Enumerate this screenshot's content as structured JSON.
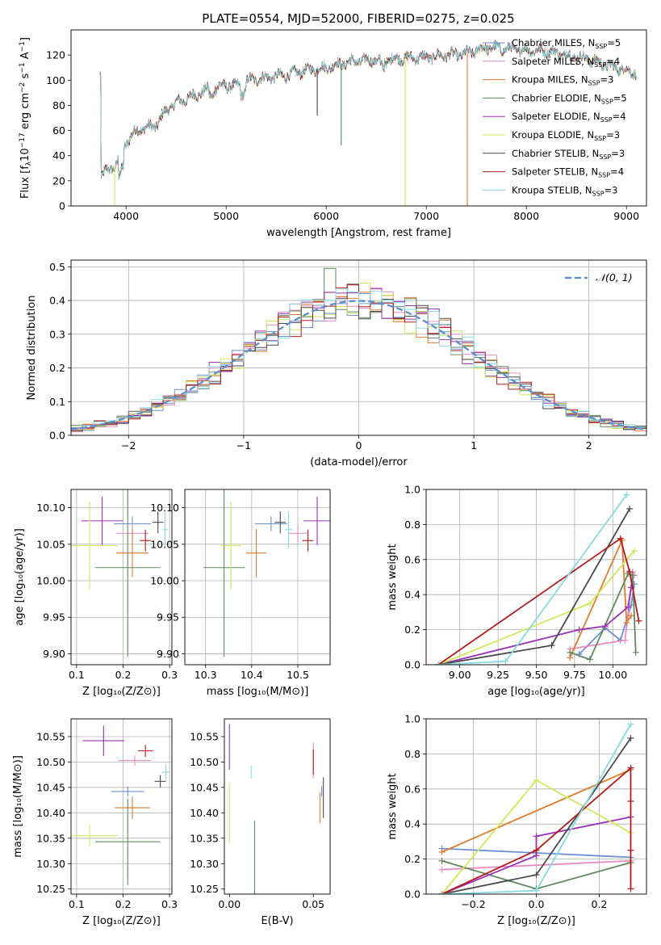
{
  "figure_title": "PLATE=0554, MJD=52000, FIBERID=0275, z=0.025",
  "colors": {
    "chabrier_miles": "#6b8fd9",
    "salpeter_miles": "#e88cc0",
    "kroupa_miles": "#e07a28",
    "chabrier_elodie": "#5e8a62",
    "salpeter_elodie": "#9b30b8",
    "kroupa_elodie": "#d2e85a",
    "chabrier_stelib": "#4a4a4a",
    "salpeter_stelib": "#b31c1c",
    "kroupa_stelib": "#86dbe0",
    "normal_curve": "#5b8fd0"
  },
  "chart_data": [
    {
      "id": "spectrum",
      "type": "line",
      "title": "PLATE=0554, MJD=52000, FIBERID=0275, z=0.025",
      "xlabel": "wavelength [Angstrom, rest frame]",
      "ylabel_parts": [
        "Flux [f",
        "λ",
        "10",
        "−17",
        " erg cm",
        "−2",
        " s",
        "−1",
        " A",
        "−1",
        "]"
      ],
      "xlim": [
        3450,
        9200
      ],
      "ylim": [
        0,
        140
      ],
      "xticks": [
        4000,
        5000,
        6000,
        7000,
        8000,
        9000
      ],
      "yticks": [
        0,
        20,
        40,
        60,
        80,
        100,
        120
      ],
      "legend_position": "upper-right",
      "series_names": [
        {
          "key": "chabrier_miles",
          "label": "Chabrier MILES, N",
          "sub": "SSP",
          "tail": "=5"
        },
        {
          "key": "salpeter_miles",
          "label": "Salpeter MILES, N",
          "sub": "SSP",
          "tail": "=4"
        },
        {
          "key": "kroupa_miles",
          "label": "Kroupa MILES, N",
          "sub": "SSP",
          "tail": "=3"
        },
        {
          "key": "chabrier_elodie",
          "label": "Chabrier ELODIE, N",
          "sub": "SSP",
          "tail": "=5"
        },
        {
          "key": "salpeter_elodie",
          "label": "Salpeter ELODIE, N",
          "sub": "SSP",
          "tail": "=4"
        },
        {
          "key": "kroupa_elodie",
          "label": "Kroupa ELODIE, N",
          "sub": "SSP",
          "tail": "=3"
        },
        {
          "key": "chabrier_stelib",
          "label": "Chabrier STELIB, N",
          "sub": "SSP",
          "tail": "=3"
        },
        {
          "key": "salpeter_stelib",
          "label": "Salpeter STELIB, N",
          "sub": "SSP",
          "tail": "=4"
        },
        {
          "key": "kroupa_stelib",
          "label": "Kroupa STELIB, N",
          "sub": "SSP",
          "tail": "=3"
        }
      ],
      "continuum": {
        "x": [
          3750,
          3800,
          3900,
          4000,
          4100,
          4200,
          4300,
          4400,
          4500,
          4600,
          4800,
          5000,
          5100,
          5200,
          5400,
          5600,
          5800,
          6000,
          6200,
          6400,
          6600,
          6800,
          7000,
          7200,
          7400,
          7600,
          7800,
          8000,
          8200,
          8400,
          8600,
          8800,
          9000,
          9100
        ],
        "y": [
          22,
          28,
          32,
          50,
          60,
          62,
          64,
          76,
          82,
          85,
          92,
          96,
          95,
          100,
          102,
          104,
          108,
          110,
          114,
          116,
          116,
          118,
          118,
          120,
          121,
          126,
          125,
          124,
          123,
          120,
          117,
          112,
          108,
          106
        ]
      },
      "dips": [
        {
          "series": "chabrier_elodie",
          "x": 6150,
          "y_min": 48
        },
        {
          "series": "kroupa_elodie",
          "x": 3885,
          "y_min": 0
        },
        {
          "series": "kroupa_elodie",
          "x": 6790,
          "y_min": 0
        },
        {
          "series": "kroupa_miles",
          "x": 7410,
          "y_min": 0
        },
        {
          "series": "chabrier_stelib",
          "x": 5910,
          "y_min": 72
        }
      ]
    },
    {
      "id": "residuals",
      "type": "step",
      "xlabel": "(data-model)/error",
      "ylabel": "Normed distribution",
      "xlim": [
        -2.5,
        2.5
      ],
      "ylim": [
        0,
        0.52
      ],
      "xticks": [
        -2,
        -1,
        0,
        1,
        2
      ],
      "yticks": [
        0.0,
        0.1,
        0.2,
        0.3,
        0.4,
        0.5
      ],
      "grid": true,
      "legend_position": "upper-right",
      "reference_curve": {
        "name": "𝒩(0, 1)",
        "mean": 0,
        "sigma": 1
      },
      "bin_width": 0.1,
      "histogram_series": [
        "chabrier_miles",
        "salpeter_miles",
        "kroupa_miles",
        "chabrier_elodie",
        "salpeter_elodie",
        "kroupa_elodie",
        "chabrier_stelib",
        "salpeter_stelib",
        "kroupa_stelib"
      ]
    },
    {
      "id": "age_vs_z",
      "type": "errorbar",
      "xlabel": "Z [log₁₀(Z/Z⊙)]",
      "ylabel": "age  [log₁₀(age/yr)]",
      "xlim": [
        0.088,
        0.305
      ],
      "ylim": [
        9.885,
        10.125
      ],
      "xticks": [
        0.1,
        0.2,
        0.3
      ],
      "yticks": [
        9.9,
        9.95,
        10.0,
        10.05,
        10.1
      ],
      "grid": true,
      "points": [
        {
          "series": "chabrier_miles",
          "x": 0.22,
          "xerr": 0.04,
          "y": 10.078,
          "yerr": 0.01
        },
        {
          "series": "salpeter_miles",
          "x": 0.22,
          "xerr": 0.035,
          "y": 10.065,
          "yerr": 0.012
        },
        {
          "series": "kroupa_miles",
          "x": 0.22,
          "xerr": 0.035,
          "y": 10.038,
          "yerr": 0.033
        },
        {
          "series": "chabrier_elodie",
          "x": 0.21,
          "xerr": 0.07,
          "y": 10.018,
          "yerr": 0.122
        },
        {
          "series": "salpeter_elodie",
          "x": 0.155,
          "xerr": 0.045,
          "y": 10.082,
          "yerr": 0.033
        },
        {
          "series": "kroupa_elodie",
          "x": 0.128,
          "xerr": 0.06,
          "y": 10.048,
          "yerr": 0.06
        },
        {
          "series": "chabrier_stelib",
          "x": 0.275,
          "xerr": 0.012,
          "y": 10.08,
          "yerr": 0.015
        },
        {
          "series": "salpeter_stelib",
          "x": 0.248,
          "xerr": 0.012,
          "y": 10.055,
          "yerr": 0.015
        },
        {
          "series": "kroupa_stelib",
          "x": 0.29,
          "xerr": 0.006,
          "y": 10.07,
          "yerr": 0.025
        }
      ]
    },
    {
      "id": "age_vs_mass",
      "type": "errorbar",
      "xlabel": "mass [log₁₀(M/M⊙)]",
      "ylabel": "",
      "xlim": [
        10.255,
        10.57
      ],
      "ylim": [
        9.885,
        10.125
      ],
      "xticks": [
        10.3,
        10.4,
        10.5
      ],
      "yticks": [
        9.9,
        9.95,
        10.0,
        10.05,
        10.1
      ],
      "grid": true,
      "points": [
        {
          "series": "chabrier_miles",
          "x": 10.442,
          "xerr": 0.035,
          "y": 10.078,
          "yerr": 0.01
        },
        {
          "series": "salpeter_miles",
          "x": 10.5,
          "xerr": 0.02,
          "y": 10.065,
          "yerr": 0.012
        },
        {
          "series": "kroupa_miles",
          "x": 10.41,
          "xerr": 0.022,
          "y": 10.038,
          "yerr": 0.033
        },
        {
          "series": "chabrier_elodie",
          "x": 10.34,
          "xerr": 0.045,
          "y": 10.018,
          "yerr": 0.122
        },
        {
          "series": "salpeter_elodie",
          "x": 10.542,
          "xerr": 0.03,
          "y": 10.082,
          "yerr": 0.033
        },
        {
          "series": "kroupa_elodie",
          "x": 10.355,
          "xerr": 0.022,
          "y": 10.048,
          "yerr": 0.06
        },
        {
          "series": "chabrier_stelib",
          "x": 10.462,
          "xerr": 0.012,
          "y": 10.08,
          "yerr": 0.015
        },
        {
          "series": "salpeter_stelib",
          "x": 10.522,
          "xerr": 0.012,
          "y": 10.055,
          "yerr": 0.015
        },
        {
          "series": "kroupa_stelib",
          "x": 10.48,
          "xerr": 0.008,
          "y": 10.07,
          "yerr": 0.025
        }
      ]
    },
    {
      "id": "weight_vs_age",
      "type": "line",
      "xlabel": "age  [log₁₀(age/yr)]",
      "ylabel": "mass weight",
      "xlim": [
        8.78,
        10.22
      ],
      "ylim": [
        0,
        1.0
      ],
      "xticks": [
        9.0,
        9.25,
        9.5,
        9.75,
        10.0
      ],
      "yticks": [
        0.0,
        0.2,
        0.4,
        0.6,
        0.8,
        1.0
      ],
      "grid": true,
      "series": [
        {
          "name": "chabrier_miles",
          "x": [
            9.78,
            9.95,
            10.05,
            10.12,
            10.14
          ],
          "y": [
            0.06,
            0.21,
            0.14,
            0.34,
            0.46
          ]
        },
        {
          "name": "salpeter_miles",
          "x": [
            9.72,
            10.08,
            10.13,
            10.14
          ],
          "y": [
            0.09,
            0.14,
            0.53,
            0.51
          ]
        },
        {
          "name": "kroupa_miles",
          "x": [
            9.72,
            10.06,
            10.09,
            10.12
          ],
          "y": [
            0.04,
            0.71,
            0.24,
            0.28
          ]
        },
        {
          "name": "chabrier_elodie",
          "x": [
            9.72,
            9.85,
            10.1,
            10.13,
            10.15
          ],
          "y": [
            0.07,
            0.03,
            0.52,
            0.51,
            0.07
          ]
        },
        {
          "name": "salpeter_elodie",
          "x": [
            8.86,
            9.78,
            9.95,
            10.1,
            10.12
          ],
          "y": [
            0.0,
            0.2,
            0.22,
            0.33,
            0.44
          ]
        },
        {
          "name": "kroupa_elodie",
          "x": [
            8.86,
            9.85,
            10.14
          ],
          "y": [
            0.0,
            0.35,
            0.65
          ]
        },
        {
          "name": "chabrier_stelib",
          "x": [
            8.86,
            9.6,
            10.11
          ],
          "y": [
            0.0,
            0.11,
            0.89
          ]
        },
        {
          "name": "salpeter_stelib",
          "x": [
            8.86,
            10.05,
            10.11,
            10.17
          ],
          "y": [
            0.0,
            0.72,
            0.53,
            0.25
          ]
        },
        {
          "name": "kroupa_stelib",
          "x": [
            8.86,
            9.3,
            10.09
          ],
          "y": [
            0.0,
            0.02,
            0.97
          ]
        }
      ]
    },
    {
      "id": "mass_vs_z",
      "type": "errorbar",
      "xlabel": "Z [log₁₀(Z/Z⊙)]",
      "ylabel": "mass [log₁₀(M/M⊙)]",
      "xlim": [
        0.088,
        0.305
      ],
      "ylim": [
        10.24,
        10.585
      ],
      "xticks": [
        0.1,
        0.2,
        0.3
      ],
      "yticks": [
        10.25,
        10.3,
        10.35,
        10.4,
        10.45,
        10.5,
        10.55
      ],
      "grid": true,
      "points": [
        {
          "series": "chabrier_miles",
          "x": 0.21,
          "xerr": 0.035,
          "y": 10.442,
          "yerr": 0.01
        },
        {
          "series": "salpeter_miles",
          "x": 0.225,
          "xerr": 0.035,
          "y": 10.503,
          "yerr": 0.01
        },
        {
          "series": "kroupa_miles",
          "x": 0.22,
          "xerr": 0.038,
          "y": 10.41,
          "yerr": 0.022
        },
        {
          "series": "chabrier_elodie",
          "x": 0.21,
          "xerr": 0.07,
          "y": 10.343,
          "yerr": 0.085
        },
        {
          "series": "salpeter_elodie",
          "x": 0.158,
          "xerr": 0.045,
          "y": 10.542,
          "yerr": 0.03
        },
        {
          "series": "kroupa_elodie",
          "x": 0.128,
          "xerr": 0.06,
          "y": 10.355,
          "yerr": 0.022
        },
        {
          "series": "chabrier_stelib",
          "x": 0.28,
          "xerr": 0.012,
          "y": 10.462,
          "yerr": 0.012
        },
        {
          "series": "salpeter_stelib",
          "x": 0.248,
          "xerr": 0.016,
          "y": 10.522,
          "yerr": 0.012
        },
        {
          "series": "kroupa_stelib",
          "x": 0.292,
          "xerr": 0.008,
          "y": 10.48,
          "yerr": 0.015
        }
      ]
    },
    {
      "id": "mass_vs_ebv",
      "type": "errorbar",
      "xlabel": "E(B-V)",
      "ylabel": "",
      "xlim": [
        -0.003,
        0.06
      ],
      "ylim": [
        10.24,
        10.585
      ],
      "xticks": [
        0.0,
        0.05
      ],
      "yticks": [
        10.25,
        10.3,
        10.35,
        10.4,
        10.45,
        10.5,
        10.55
      ],
      "grid": false,
      "points": [
        {
          "series": "chabrier_miles",
          "x": 0.055,
          "xerr": 0,
          "y": 10.442,
          "yerr": 0.01
        },
        {
          "series": "salpeter_miles",
          "x": 0.05,
          "xerr": 0,
          "y": 10.503,
          "yerr": 0.035
        },
        {
          "series": "kroupa_miles",
          "x": 0.054,
          "xerr": 0,
          "y": 10.41,
          "yerr": 0.03
        },
        {
          "series": "chabrier_elodie",
          "x": 0.015,
          "xerr": 0,
          "y": 10.3,
          "yerr": 0.085
        },
        {
          "series": "salpeter_elodie",
          "x": 0.0,
          "xerr": 0,
          "y": 10.53,
          "yerr": 0.045
        },
        {
          "series": "kroupa_elodie",
          "x": 0.0,
          "xerr": 0,
          "y": 10.4,
          "yerr": 0.06
        },
        {
          "series": "chabrier_stelib",
          "x": 0.056,
          "xerr": 0,
          "y": 10.43,
          "yerr": 0.04
        },
        {
          "series": "salpeter_stelib",
          "x": 0.05,
          "xerr": 0,
          "y": 10.5,
          "yerr": 0.025
        },
        {
          "series": "kroupa_stelib",
          "x": 0.013,
          "xerr": 0,
          "y": 10.48,
          "yerr": 0.012
        }
      ]
    },
    {
      "id": "weight_vs_z",
      "type": "line",
      "xlabel": "Z [log₁₀(Z/Z⊙)]",
      "ylabel": "mass weight",
      "xlim": [
        -0.35,
        0.35
      ],
      "ylim": [
        0,
        1.0
      ],
      "xticks": [
        -0.2,
        0.0,
        0.2
      ],
      "yticks": [
        0.0,
        0.2,
        0.4,
        0.6,
        0.8,
        1.0
      ],
      "grid": true,
      "series": [
        {
          "name": "chabrier_miles",
          "x": [
            -0.3,
            0.3
          ],
          "y": [
            0.26,
            0.21
          ]
        },
        {
          "name": "salpeter_miles",
          "x": [
            -0.3,
            0.3
          ],
          "y": [
            0.14,
            0.19
          ]
        },
        {
          "name": "kroupa_miles",
          "x": [
            -0.3,
            0.3
          ],
          "y": [
            0.24,
            0.71
          ]
        },
        {
          "name": "chabrier_elodie",
          "x": [
            -0.3,
            0.0,
            0.3
          ],
          "y": [
            0.19,
            0.03,
            0.18
          ]
        },
        {
          "name": "salpeter_elodie",
          "x": [
            -0.3,
            0.0,
            0.0,
            0.3
          ],
          "y": [
            0.0,
            0.22,
            0.33,
            0.44
          ]
        },
        {
          "name": "kroupa_elodie",
          "x": [
            -0.3,
            0.0,
            0.3
          ],
          "y": [
            0.0,
            0.65,
            0.35
          ]
        },
        {
          "name": "chabrier_stelib",
          "x": [
            -0.3,
            0.0,
            0.3
          ],
          "y": [
            0.0,
            0.11,
            0.89
          ]
        },
        {
          "name": "salpeter_stelib",
          "x": [
            -0.3,
            0.0,
            0.3,
            0.3,
            0.3,
            0.3
          ],
          "y": [
            0.0,
            0.25,
            0.72,
            0.53,
            0.25,
            0.03
          ]
        },
        {
          "name": "kroupa_stelib",
          "x": [
            -0.3,
            0.0,
            0.3
          ],
          "y": [
            0.0,
            0.02,
            0.97
          ]
        }
      ]
    }
  ]
}
